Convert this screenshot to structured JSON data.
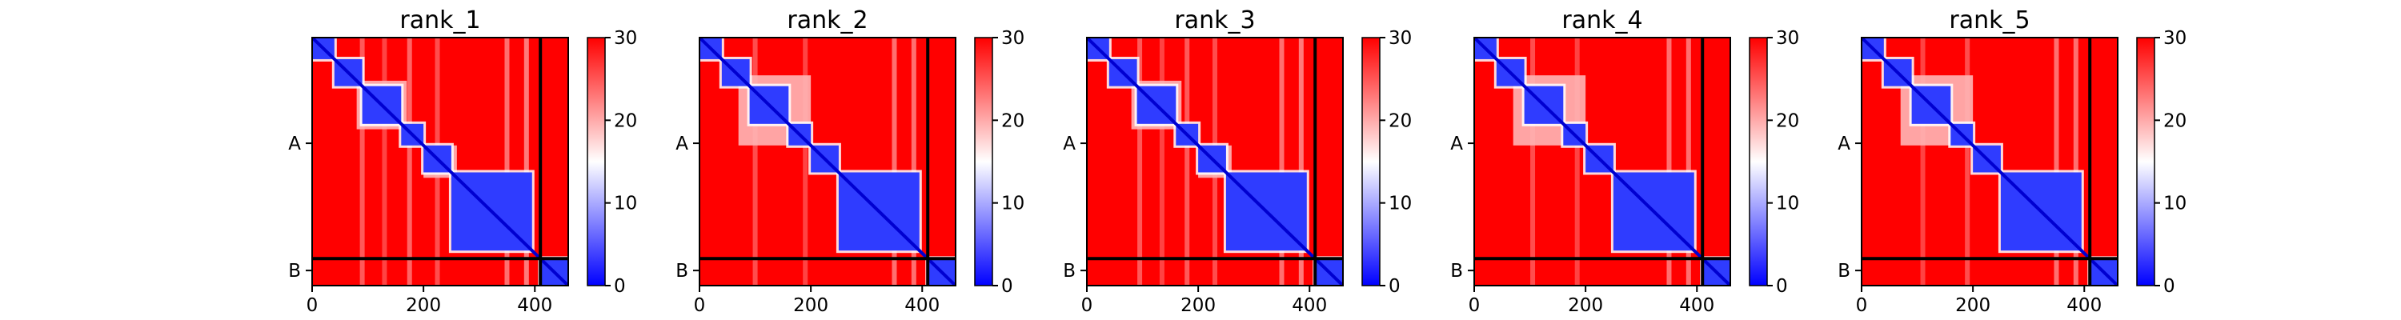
{
  "figure": {
    "colors": {
      "low": "#0000ff",
      "mid": "#ffffff",
      "high": "#ff0000"
    }
  },
  "chart_data": [
    {
      "type": "heatmap",
      "title": "rank_1",
      "x_ticks": [
        0,
        200,
        400
      ],
      "xlim": [
        0,
        460
      ],
      "ylim": [
        0,
        460
      ],
      "chain_labels": [
        "A",
        "B"
      ],
      "chain_label_positions": [
        196,
        432
      ],
      "chain_boundary": 410,
      "colorbar": {
        "range": [
          0,
          30
        ],
        "ticks": [
          0,
          10,
          20,
          30
        ]
      },
      "blue_blocks": [
        [
          0,
          40
        ],
        [
          40,
          90
        ],
        [
          90,
          160
        ],
        [
          160,
          200
        ],
        [
          200,
          250
        ],
        [
          250,
          395
        ],
        [
          410,
          460
        ]
      ],
      "pale_blocks": [
        [
          80,
          170
        ],
        [
          200,
          260
        ]
      ],
      "stripes": [
        [
          90,
          0.4
        ],
        [
          130,
          0.3
        ],
        [
          175,
          0.45
        ],
        [
          225,
          0.35
        ],
        [
          350,
          0.5
        ],
        [
          385,
          0.55
        ]
      ]
    },
    {
      "type": "heatmap",
      "title": "rank_2",
      "x_ticks": [
        0,
        200,
        400
      ],
      "xlim": [
        0,
        460
      ],
      "ylim": [
        0,
        460
      ],
      "chain_labels": [
        "A",
        "B"
      ],
      "chain_label_positions": [
        196,
        432
      ],
      "chain_boundary": 410,
      "colorbar": {
        "range": [
          0,
          30
        ],
        "ticks": [
          0,
          10,
          20,
          30
        ]
      },
      "blue_blocks": [
        [
          0,
          40
        ],
        [
          40,
          90
        ],
        [
          90,
          160
        ],
        [
          160,
          200
        ],
        [
          200,
          250
        ],
        [
          250,
          395
        ],
        [
          410,
          460
        ]
      ],
      "pale_blocks": [
        [
          70,
          200
        ]
      ],
      "stripes": [
        [
          100,
          0.35
        ],
        [
          190,
          0.3
        ],
        [
          350,
          0.5
        ],
        [
          385,
          0.5
        ]
      ]
    },
    {
      "type": "heatmap",
      "title": "rank_3",
      "x_ticks": [
        0,
        200,
        400
      ],
      "xlim": [
        0,
        460
      ],
      "ylim": [
        0,
        460
      ],
      "chain_labels": [
        "A",
        "B"
      ],
      "chain_label_positions": [
        196,
        432
      ],
      "chain_boundary": 410,
      "colorbar": {
        "range": [
          0,
          30
        ],
        "ticks": [
          0,
          10,
          20,
          30
        ]
      },
      "blue_blocks": [
        [
          0,
          40
        ],
        [
          40,
          90
        ],
        [
          90,
          160
        ],
        [
          160,
          200
        ],
        [
          200,
          250
        ],
        [
          250,
          395
        ],
        [
          410,
          460
        ]
      ],
      "pale_blocks": [
        [
          80,
          170
        ],
        [
          200,
          260
        ]
      ],
      "stripes": [
        [
          95,
          0.4
        ],
        [
          135,
          0.3
        ],
        [
          180,
          0.4
        ],
        [
          230,
          0.35
        ],
        [
          350,
          0.5
        ],
        [
          385,
          0.55
        ]
      ]
    },
    {
      "type": "heatmap",
      "title": "rank_4",
      "x_ticks": [
        0,
        200,
        400
      ],
      "xlim": [
        0,
        460
      ],
      "ylim": [
        0,
        460
      ],
      "chain_labels": [
        "A",
        "B"
      ],
      "chain_label_positions": [
        196,
        432
      ],
      "chain_boundary": 410,
      "colorbar": {
        "range": [
          0,
          30
        ],
        "ticks": [
          0,
          10,
          20,
          30
        ]
      },
      "blue_blocks": [
        [
          0,
          40
        ],
        [
          40,
          90
        ],
        [
          90,
          160
        ],
        [
          160,
          200
        ],
        [
          200,
          250
        ],
        [
          250,
          395
        ],
        [
          410,
          460
        ]
      ],
      "pale_blocks": [
        [
          70,
          200
        ]
      ],
      "stripes": [
        [
          105,
          0.35
        ],
        [
          185,
          0.3
        ],
        [
          350,
          0.5
        ],
        [
          385,
          0.5
        ]
      ]
    },
    {
      "type": "heatmap",
      "title": "rank_5",
      "x_ticks": [
        0,
        200,
        400
      ],
      "xlim": [
        0,
        460
      ],
      "ylim": [
        0,
        460
      ],
      "chain_labels": [
        "A",
        "B"
      ],
      "chain_label_positions": [
        196,
        432
      ],
      "chain_boundary": 410,
      "colorbar": {
        "range": [
          0,
          30
        ],
        "ticks": [
          0,
          10,
          20,
          30
        ]
      },
      "blue_blocks": [
        [
          0,
          40
        ],
        [
          40,
          90
        ],
        [
          90,
          160
        ],
        [
          160,
          200
        ],
        [
          200,
          250
        ],
        [
          250,
          395
        ],
        [
          410,
          460
        ]
      ],
      "pale_blocks": [
        [
          70,
          200
        ]
      ],
      "stripes": [
        [
          110,
          0.3
        ],
        [
          190,
          0.35
        ],
        [
          350,
          0.5
        ],
        [
          385,
          0.5
        ]
      ]
    }
  ]
}
